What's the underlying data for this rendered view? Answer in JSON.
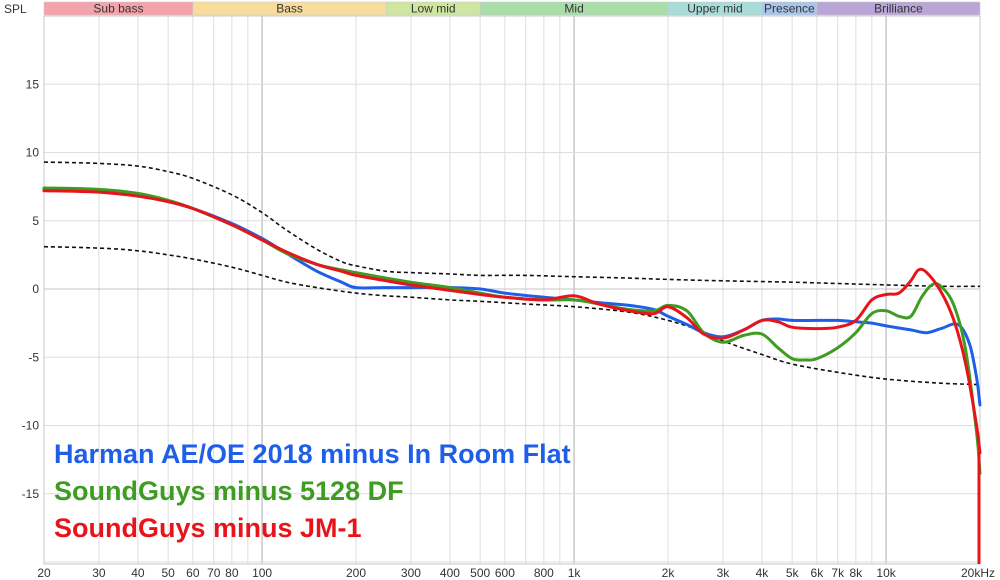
{
  "chart_data": {
    "type": "line",
    "ylabel": "SPL",
    "xlabel": "",
    "x_scale": "log",
    "xlim": [
      20,
      20000
    ],
    "ylim": [
      -20,
      20
    ],
    "grid": true,
    "legend_placement": "bottom-left",
    "x_ticks": [
      {
        "value": 20,
        "label": "20"
      },
      {
        "value": 30,
        "label": "30"
      },
      {
        "value": 40,
        "label": "40"
      },
      {
        "value": 50,
        "label": "50"
      },
      {
        "value": 60,
        "label": "60"
      },
      {
        "value": 70,
        "label": "70"
      },
      {
        "value": 80,
        "label": "80"
      },
      {
        "value": 100,
        "label": "100"
      },
      {
        "value": 200,
        "label": "200"
      },
      {
        "value": 300,
        "label": "300"
      },
      {
        "value": 400,
        "label": "400"
      },
      {
        "value": 500,
        "label": "500"
      },
      {
        "value": 600,
        "label": "600"
      },
      {
        "value": 800,
        "label": "800"
      },
      {
        "value": 1000,
        "label": "1k"
      },
      {
        "value": 2000,
        "label": "2k"
      },
      {
        "value": 3000,
        "label": "3k"
      },
      {
        "value": 4000,
        "label": "4k"
      },
      {
        "value": 5000,
        "label": "5k"
      },
      {
        "value": 6000,
        "label": "6k"
      },
      {
        "value": 7000,
        "label": "7k"
      },
      {
        "value": 8000,
        "label": "8k"
      },
      {
        "value": 10000,
        "label": "10k"
      },
      {
        "value": 20000,
        "label": "20kHz"
      }
    ],
    "y_ticks": [
      {
        "value": 15,
        "label": "15"
      },
      {
        "value": 10,
        "label": "10"
      },
      {
        "value": 5,
        "label": "5"
      },
      {
        "value": 0,
        "label": "0"
      },
      {
        "value": -5,
        "label": "-5"
      },
      {
        "value": -10,
        "label": "-10"
      },
      {
        "value": -15,
        "label": "-15"
      }
    ],
    "bands": [
      {
        "name": "Sub bass",
        "from": 20,
        "to": 60,
        "color": "#f3a3ab"
      },
      {
        "name": "Bass",
        "from": 60,
        "to": 250,
        "color": "#f7dc9c"
      },
      {
        "name": "Low mid",
        "from": 250,
        "to": 500,
        "color": "#cfe6a0"
      },
      {
        "name": "Mid",
        "from": 500,
        "to": 2000,
        "color": "#a9dea9"
      },
      {
        "name": "Upper mid",
        "from": 2000,
        "to": 4000,
        "color": "#a9dcd9"
      },
      {
        "name": "Presence",
        "from": 4000,
        "to": 6000,
        "color": "#a9c6ea"
      },
      {
        "name": "Brilliance",
        "from": 6000,
        "to": 20000,
        "color": "#b9a6d6"
      }
    ],
    "series": [
      {
        "name": "Harman AE/OE 2018 minus In Room Flat",
        "color": "#1f5fe8",
        "x": [
          20,
          30,
          40,
          50,
          60,
          80,
          100,
          120,
          150,
          180,
          200,
          250,
          300,
          400,
          500,
          600,
          800,
          1000,
          1200,
          1500,
          1800,
          2000,
          2300,
          2600,
          3000,
          3500,
          4000,
          4500,
          5000,
          6000,
          7000,
          8000,
          9000,
          10000,
          12000,
          13500,
          15000,
          17000,
          18500,
          19500,
          20000
        ],
        "y": [
          7.3,
          7.2,
          6.9,
          6.4,
          5.9,
          4.8,
          3.7,
          2.6,
          1.3,
          0.5,
          0.1,
          0.1,
          0.1,
          0.1,
          0.0,
          -0.3,
          -0.6,
          -0.8,
          -1.0,
          -1.2,
          -1.5,
          -2.0,
          -2.6,
          -3.2,
          -3.5,
          -3.0,
          -2.3,
          -2.2,
          -2.3,
          -2.3,
          -2.3,
          -2.4,
          -2.5,
          -2.7,
          -3.0,
          -3.2,
          -2.9,
          -2.6,
          -4.0,
          -6.5,
          -8.5
        ]
      },
      {
        "name": "SoundGuys minus 5128 DF",
        "color": "#3f9c22",
        "x": [
          20,
          30,
          40,
          50,
          60,
          80,
          100,
          120,
          150,
          180,
          200,
          250,
          300,
          400,
          500,
          600,
          800,
          1000,
          1200,
          1500,
          1800,
          2000,
          2300,
          2600,
          3000,
          3500,
          4000,
          4500,
          5000,
          5500,
          6000,
          7000,
          8000,
          9000,
          10000,
          11000,
          12000,
          13000,
          14000,
          15000,
          16500,
          18000,
          19500,
          20000
        ],
        "y": [
          7.4,
          7.3,
          7.0,
          6.5,
          5.9,
          4.7,
          3.6,
          2.6,
          1.8,
          1.4,
          1.2,
          0.8,
          0.5,
          0.1,
          -0.3,
          -0.6,
          -0.8,
          -0.8,
          -1.1,
          -1.5,
          -1.6,
          -1.2,
          -1.6,
          -3.2,
          -3.9,
          -3.4,
          -3.3,
          -4.3,
          -5.1,
          -5.2,
          -5.1,
          -4.3,
          -3.2,
          -1.8,
          -1.6,
          -2.0,
          -2.0,
          -0.6,
          0.3,
          0.2,
          -1.2,
          -4.5,
          -10.5,
          -13.5
        ]
      },
      {
        "name": "SoundGuys minus JM-1",
        "color": "#e8141b",
        "x": [
          20,
          30,
          40,
          50,
          60,
          80,
          100,
          120,
          150,
          180,
          200,
          250,
          300,
          400,
          500,
          600,
          800,
          1000,
          1200,
          1500,
          1800,
          2000,
          2300,
          2600,
          3000,
          3500,
          4000,
          4500,
          5000,
          6000,
          7000,
          8000,
          9000,
          10000,
          11000,
          12000,
          12700,
          13500,
          15000,
          16500,
          18000,
          19500,
          20000
        ],
        "y": [
          7.2,
          7.1,
          6.8,
          6.4,
          5.9,
          4.7,
          3.6,
          2.7,
          1.8,
          1.3,
          1.0,
          0.6,
          0.3,
          -0.1,
          -0.4,
          -0.6,
          -0.8,
          -0.5,
          -1.1,
          -1.6,
          -1.8,
          -1.3,
          -2.1,
          -3.3,
          -3.6,
          -3.0,
          -2.3,
          -2.4,
          -2.8,
          -2.9,
          -2.8,
          -2.3,
          -0.8,
          -0.4,
          -0.3,
          0.6,
          1.4,
          1.2,
          -0.2,
          -2.3,
          -5.5,
          -10.0,
          -12.0
        ]
      }
    ],
    "reference_curves": [
      {
        "style": "dashed",
        "color": "#111111",
        "x": [
          20,
          30,
          40,
          50,
          60,
          80,
          100,
          120,
          150,
          180,
          200,
          250,
          300,
          400,
          500,
          700,
          1000,
          1500,
          2000,
          3000,
          5000,
          7000,
          10000,
          15000,
          20000
        ],
        "y": [
          9.3,
          9.2,
          9.0,
          8.6,
          8.1,
          6.9,
          5.6,
          4.3,
          2.9,
          2.0,
          1.7,
          1.3,
          1.2,
          1.1,
          1.0,
          1.0,
          0.9,
          0.8,
          0.7,
          0.6,
          0.5,
          0.4,
          0.3,
          0.2,
          0.2
        ]
      },
      {
        "style": "dashed",
        "color": "#111111",
        "x": [
          20,
          30,
          40,
          50,
          60,
          80,
          100,
          120,
          150,
          200,
          250,
          300,
          400,
          500,
          700,
          1000,
          1500,
          2000,
          2500,
          3000,
          4000,
          5000,
          7000,
          10000,
          15000,
          20000
        ],
        "y": [
          3.1,
          3.0,
          2.8,
          2.5,
          2.2,
          1.6,
          1.0,
          0.5,
          0.1,
          -0.3,
          -0.5,
          -0.6,
          -0.8,
          -0.9,
          -1.1,
          -1.3,
          -1.7,
          -2.3,
          -3.0,
          -3.8,
          -4.8,
          -5.5,
          -6.1,
          -6.6,
          -6.9,
          -7.0
        ]
      }
    ]
  }
}
